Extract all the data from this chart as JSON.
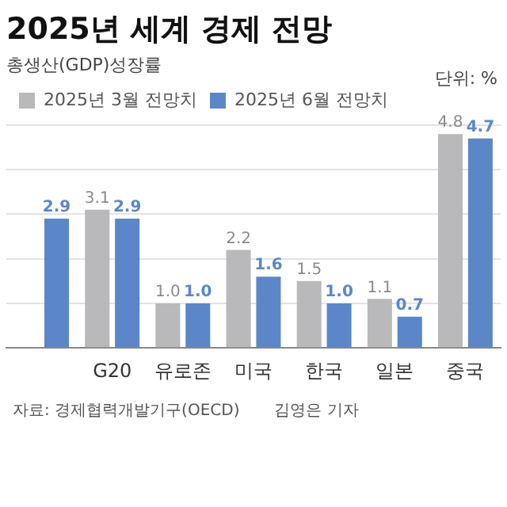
{
  "chart_data": {
    "type": "bar",
    "title": "2025년 세계 경제 전망",
    "subtitle": "총생산(GDP)성장률",
    "categories": [
      null,
      "G20",
      "유로존",
      "미국",
      "한국",
      "일본",
      "중국"
    ],
    "series": [
      {
        "name": "2025년 3월 전망치",
        "color": "#b9b9bc",
        "values": [
          null,
          3.1,
          1.0,
          2.2,
          1.5,
          1.1,
          4.8
        ],
        "value_labels": [
          null,
          "3.1",
          "1.0",
          "2.2",
          "1.5",
          "1.1",
          "4.8"
        ]
      },
      {
        "name": "2025년 6월 전망치",
        "color": "#5b87c9",
        "values": [
          2.9,
          2.9,
          1.0,
          1.6,
          1.0,
          0.7,
          4.7
        ],
        "value_labels": [
          "2.9",
          "2.9",
          "1.0",
          "1.6",
          "1.0",
          "0.7",
          "4.7"
        ]
      }
    ],
    "ylim": [
      0,
      5
    ],
    "yticks": [
      {
        "value": 0,
        "label": null
      },
      {
        "value": 1,
        "label": null
      },
      {
        "value": 2,
        "label": null
      },
      {
        "value": 3,
        "label": null
      },
      {
        "value": 4,
        "label": null
      },
      {
        "value": 5,
        "label": null
      }
    ],
    "tick_labels": "x",
    "grid": "y",
    "legend": "top left",
    "annotations": [
      "단위: %",
      "자료: 경제협력개발기구(OECD)",
      "김영은 기자"
    ]
  }
}
